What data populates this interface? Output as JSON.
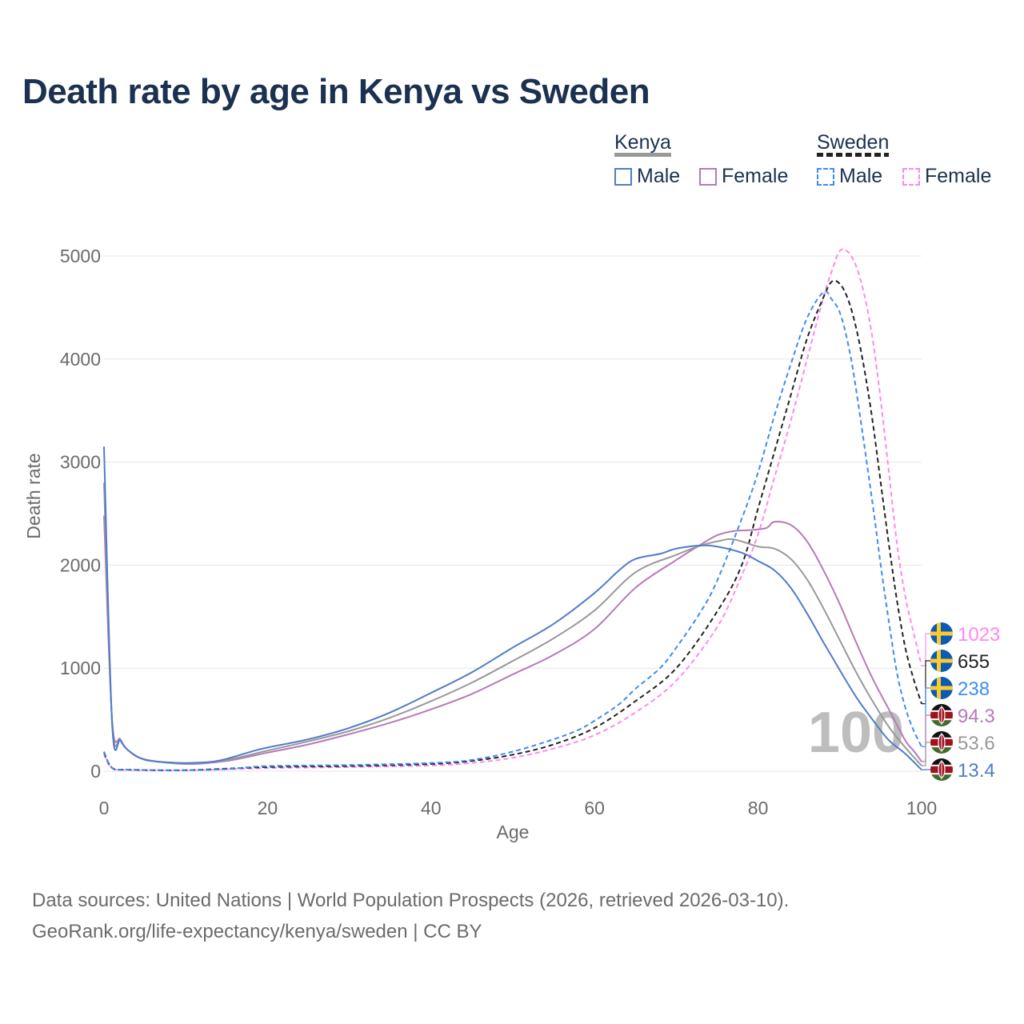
{
  "title": "Death rate by age in Kenya vs Sweden",
  "legend": {
    "groups": [
      {
        "name": "Kenya",
        "color": "#999999",
        "dash": false,
        "items": [
          {
            "label": "Male",
            "color": "#4f7cc9"
          },
          {
            "label": "Female",
            "color": "#b67ab8"
          }
        ]
      },
      {
        "name": "Sweden",
        "color": "#222222",
        "dash": true,
        "items": [
          {
            "label": "Male",
            "color": "#3e8cf2"
          },
          {
            "label": "Female",
            "color": "#ff88f0"
          }
        ]
      }
    ]
  },
  "watermark": "100",
  "footer": {
    "line1": "Data sources: United Nations | World Population Prospects (2026, retrieved 2026-03-10).",
    "line2": "GeoRank.org/life-expectancy/kenya/sweden | CC BY"
  },
  "chart_data": {
    "type": "line",
    "title": "Death rate by age in Kenya vs Sweden",
    "xlabel": "Age",
    "ylabel": "Death rate",
    "xlim": [
      0,
      100
    ],
    "ylim": [
      0,
      5000
    ],
    "xticks": [
      0,
      20,
      40,
      60,
      80,
      100
    ],
    "yticks": [
      0,
      1000,
      2000,
      3000,
      4000,
      5000
    ],
    "grid": true,
    "series": [
      {
        "name": "Sweden Female",
        "country": "sweden",
        "color": "#ff88f0",
        "dash": true,
        "end_label": "1023",
        "points": [
          [
            0,
            160
          ],
          [
            1,
            30
          ],
          [
            3,
            12
          ],
          [
            10,
            8
          ],
          [
            20,
            30
          ],
          [
            30,
            40
          ],
          [
            40,
            55
          ],
          [
            45,
            80
          ],
          [
            50,
            130
          ],
          [
            55,
            220
          ],
          [
            60,
            350
          ],
          [
            65,
            570
          ],
          [
            70,
            880
          ],
          [
            75,
            1400
          ],
          [
            78,
            1900
          ],
          [
            80,
            2300
          ],
          [
            82,
            2850
          ],
          [
            84,
            3400
          ],
          [
            86,
            4000
          ],
          [
            88,
            4600
          ],
          [
            89,
            4850
          ],
          [
            90,
            5050
          ],
          [
            91,
            5040
          ],
          [
            92,
            4900
          ],
          [
            93,
            4620
          ],
          [
            94,
            4200
          ],
          [
            95,
            3600
          ],
          [
            96,
            2900
          ],
          [
            97,
            2200
          ],
          [
            98,
            1700
          ],
          [
            99,
            1350
          ],
          [
            100,
            1023
          ]
        ]
      },
      {
        "name": "Sweden",
        "country": "sweden",
        "color": "#222222",
        "dash": true,
        "end_label": "655",
        "points": [
          [
            0,
            180
          ],
          [
            1,
            32
          ],
          [
            3,
            15
          ],
          [
            10,
            10
          ],
          [
            20,
            40
          ],
          [
            30,
            50
          ],
          [
            40,
            70
          ],
          [
            45,
            100
          ],
          [
            50,
            160
          ],
          [
            55,
            260
          ],
          [
            60,
            420
          ],
          [
            65,
            680
          ],
          [
            70,
            1000
          ],
          [
            75,
            1550
          ],
          [
            78,
            2000
          ],
          [
            80,
            2550
          ],
          [
            82,
            3100
          ],
          [
            84,
            3650
          ],
          [
            86,
            4200
          ],
          [
            88,
            4600
          ],
          [
            89,
            4750
          ],
          [
            90,
            4730
          ],
          [
            91,
            4580
          ],
          [
            92,
            4300
          ],
          [
            93,
            3900
          ],
          [
            94,
            3400
          ],
          [
            95,
            2800
          ],
          [
            96,
            2200
          ],
          [
            97,
            1650
          ],
          [
            98,
            1200
          ],
          [
            99,
            900
          ],
          [
            100,
            655
          ]
        ]
      },
      {
        "name": "Sweden Male",
        "country": "sweden",
        "color": "#3e8cf2",
        "dash": true,
        "end_label": "238",
        "points": [
          [
            0,
            190
          ],
          [
            1,
            33
          ],
          [
            3,
            15
          ],
          [
            10,
            10
          ],
          [
            15,
            20
          ],
          [
            20,
            50
          ],
          [
            30,
            60
          ],
          [
            40,
            80
          ],
          [
            45,
            110
          ],
          [
            50,
            190
          ],
          [
            55,
            310
          ],
          [
            58,
            400
          ],
          [
            60,
            490
          ],
          [
            63,
            650
          ],
          [
            65,
            800
          ],
          [
            68,
            1000
          ],
          [
            70,
            1200
          ],
          [
            73,
            1550
          ],
          [
            75,
            1850
          ],
          [
            78,
            2450
          ],
          [
            80,
            2900
          ],
          [
            82,
            3450
          ],
          [
            84,
            3950
          ],
          [
            86,
            4400
          ],
          [
            88,
            4650
          ],
          [
            89,
            4580
          ],
          [
            90,
            4450
          ],
          [
            91,
            4150
          ],
          [
            92,
            3700
          ],
          [
            94,
            2600
          ],
          [
            95,
            2000
          ],
          [
            96,
            1450
          ],
          [
            97,
            950
          ],
          [
            98,
            620
          ],
          [
            99,
            400
          ],
          [
            100,
            238
          ]
        ]
      },
      {
        "name": "Kenya Female",
        "country": "kenya",
        "color": "#b67ab8",
        "dash": false,
        "end_label": "94.3",
        "points": [
          [
            0,
            2480
          ],
          [
            1,
            490
          ],
          [
            2,
            310
          ],
          [
            3,
            200
          ],
          [
            5,
            115
          ],
          [
            10,
            70
          ],
          [
            15,
            100
          ],
          [
            20,
            180
          ],
          [
            25,
            260
          ],
          [
            30,
            360
          ],
          [
            35,
            470
          ],
          [
            40,
            600
          ],
          [
            45,
            750
          ],
          [
            50,
            940
          ],
          [
            55,
            1130
          ],
          [
            60,
            1380
          ],
          [
            65,
            1780
          ],
          [
            70,
            2050
          ],
          [
            73,
            2200
          ],
          [
            75,
            2290
          ],
          [
            77,
            2330
          ],
          [
            79,
            2340
          ],
          [
            81,
            2360
          ],
          [
            82,
            2420
          ],
          [
            84,
            2390
          ],
          [
            86,
            2230
          ],
          [
            88,
            1950
          ],
          [
            90,
            1620
          ],
          [
            92,
            1250
          ],
          [
            94,
            900
          ],
          [
            96,
            600
          ],
          [
            98,
            300
          ],
          [
            99,
            200
          ],
          [
            100,
            94.3
          ]
        ]
      },
      {
        "name": "Kenya",
        "country": "kenya",
        "color": "#999999",
        "dash": false,
        "end_label": "53.6",
        "points": [
          [
            0,
            2800
          ],
          [
            1,
            470
          ],
          [
            2,
            300
          ],
          [
            3,
            200
          ],
          [
            5,
            115
          ],
          [
            10,
            75
          ],
          [
            15,
            110
          ],
          [
            20,
            200
          ],
          [
            25,
            290
          ],
          [
            30,
            390
          ],
          [
            35,
            520
          ],
          [
            40,
            680
          ],
          [
            45,
            860
          ],
          [
            50,
            1070
          ],
          [
            55,
            1290
          ],
          [
            60,
            1560
          ],
          [
            65,
            1930
          ],
          [
            70,
            2100
          ],
          [
            73,
            2190
          ],
          [
            75,
            2230
          ],
          [
            77,
            2250
          ],
          [
            80,
            2180
          ],
          [
            82,
            2160
          ],
          [
            84,
            2060
          ],
          [
            86,
            1860
          ],
          [
            88,
            1580
          ],
          [
            90,
            1270
          ],
          [
            92,
            960
          ],
          [
            94,
            680
          ],
          [
            96,
            430
          ],
          [
            98,
            230
          ],
          [
            100,
            53.6
          ]
        ]
      },
      {
        "name": "Kenya Male",
        "country": "kenya",
        "color": "#4f7cc9",
        "dash": false,
        "end_label": "13.4",
        "points": [
          [
            0,
            3150
          ],
          [
            1,
            450
          ],
          [
            2,
            300
          ],
          [
            3,
            200
          ],
          [
            5,
            110
          ],
          [
            8,
            85
          ],
          [
            10,
            80
          ],
          [
            13,
            90
          ],
          [
            15,
            120
          ],
          [
            18,
            190
          ],
          [
            20,
            230
          ],
          [
            25,
            310
          ],
          [
            30,
            420
          ],
          [
            35,
            570
          ],
          [
            40,
            760
          ],
          [
            45,
            960
          ],
          [
            50,
            1200
          ],
          [
            55,
            1430
          ],
          [
            60,
            1730
          ],
          [
            63,
            1950
          ],
          [
            65,
            2060
          ],
          [
            68,
            2110
          ],
          [
            70,
            2160
          ],
          [
            73,
            2190
          ],
          [
            75,
            2180
          ],
          [
            78,
            2120
          ],
          [
            80,
            2040
          ],
          [
            82,
            1950
          ],
          [
            84,
            1780
          ],
          [
            86,
            1530
          ],
          [
            88,
            1250
          ],
          [
            90,
            980
          ],
          [
            92,
            720
          ],
          [
            94,
            500
          ],
          [
            96,
            300
          ],
          [
            98,
            170
          ],
          [
            100,
            13.4
          ]
        ]
      }
    ]
  }
}
